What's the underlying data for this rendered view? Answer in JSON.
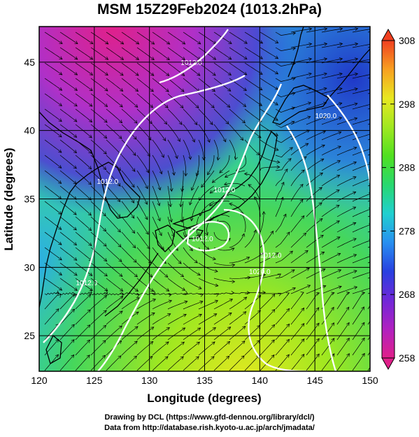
{
  "title": "MSM 15Z29Feb2024 (1013.2hPa)",
  "map": {
    "x_axis_label": "Longitude (degrees)",
    "y_axis_label": "Latitude  (degrees)",
    "x_ticks": [
      120,
      125,
      130,
      135,
      140,
      145,
      150
    ],
    "y_ticks": [
      25,
      30,
      35,
      40,
      45
    ],
    "lon_range": [
      120,
      150
    ],
    "lat_range": [
      22.4,
      47.6
    ],
    "isobar_labels": [
      {
        "text": "1012.0",
        "lon": 133.8,
        "lat": 44.9
      },
      {
        "text": "1020.0",
        "lon": 146.0,
        "lat": 41.0
      },
      {
        "text": "1012.0",
        "lon": 126.2,
        "lat": 36.2
      },
      {
        "text": "1012.0",
        "lon": 136.8,
        "lat": 35.6
      },
      {
        "text": "1012.0",
        "lon": 134.8,
        "lat": 32.0
      },
      {
        "text": "1012.0",
        "lon": 141.0,
        "lat": 30.8
      },
      {
        "text": "1012.0",
        "lon": 124.3,
        "lat": 28.8
      },
      {
        "text": "1020.0",
        "lon": 140.0,
        "lat": 29.6
      }
    ]
  },
  "colorbar": {
    "ticks": [
      258,
      268,
      278,
      288,
      298,
      308
    ],
    "range": [
      258,
      308
    ],
    "stops": [
      "#e0208a",
      "#b020c0",
      "#7028d8",
      "#2840e0",
      "#2890f0",
      "#20d0d0",
      "#28d870",
      "#50e020",
      "#a0e820",
      "#e8e820",
      "#f8a020",
      "#f04020"
    ]
  },
  "footer": {
    "line1": "Drawing by DCL (https://www.gfd-dennou.org/library/dcl/)",
    "line2": "Data from http://database.rish.kyoto-u.ac.jp/arch/jmadata/"
  }
}
